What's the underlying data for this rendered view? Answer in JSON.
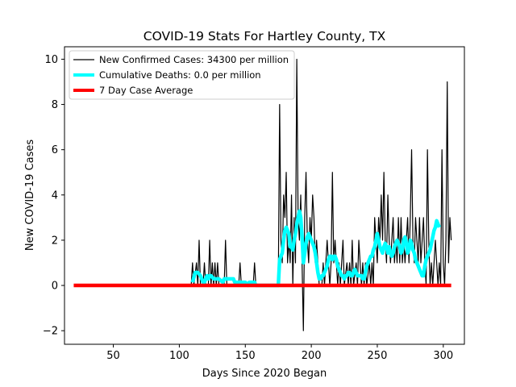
{
  "chart_data": {
    "type": "line",
    "title": "COVID-19 Stats For Hartley County, TX",
    "xlabel": "Days Since 2020 Began",
    "ylabel": "New COVID-19 Cases",
    "xlim": [
      13,
      316
    ],
    "ylim": [
      -2.6,
      10.55
    ],
    "xticks": [
      50,
      100,
      150,
      200,
      250,
      300
    ],
    "yticks": [
      -2,
      0,
      2,
      4,
      6,
      8,
      10
    ],
    "ytick_labels": [
      "−2",
      "0",
      "2",
      "4",
      "6",
      "8",
      "10"
    ],
    "grid": false,
    "legend_position": "upper-left",
    "series": [
      {
        "name": "New Confirmed Cases: 34300 per million",
        "color": "#000000",
        "points": [
          [
            20,
            0
          ],
          [
            109,
            0
          ],
          [
            110,
            1
          ],
          [
            111,
            0
          ],
          [
            113,
            1
          ],
          [
            114,
            0
          ],
          [
            115,
            2
          ],
          [
            116,
            0
          ],
          [
            118,
            0
          ],
          [
            119,
            1
          ],
          [
            120,
            0
          ],
          [
            122,
            0
          ],
          [
            123,
            2
          ],
          [
            124,
            0
          ],
          [
            125,
            1
          ],
          [
            126,
            0
          ],
          [
            127,
            1
          ],
          [
            128,
            0
          ],
          [
            129,
            1
          ],
          [
            130,
            0
          ],
          [
            134,
            0
          ],
          [
            135,
            2
          ],
          [
            136,
            0
          ],
          [
            145,
            0
          ],
          [
            146,
            1
          ],
          [
            147,
            0
          ],
          [
            156,
            0
          ],
          [
            157,
            1
          ],
          [
            158,
            0
          ],
          [
            175,
            0
          ],
          [
            176,
            8
          ],
          [
            177,
            2
          ],
          [
            178,
            1
          ],
          [
            179,
            4
          ],
          [
            180,
            3
          ],
          [
            181,
            5
          ],
          [
            182,
            1
          ],
          [
            183,
            2
          ],
          [
            184,
            1
          ],
          [
            185,
            4
          ],
          [
            186,
            0
          ],
          [
            187,
            3
          ],
          [
            188,
            1
          ],
          [
            189,
            10
          ],
          [
            190,
            3
          ],
          [
            191,
            2
          ],
          [
            192,
            4
          ],
          [
            193,
            1
          ],
          [
            194,
            -2
          ],
          [
            195,
            3
          ],
          [
            196,
            5
          ],
          [
            197,
            2
          ],
          [
            198,
            1
          ],
          [
            199,
            3
          ],
          [
            200,
            2
          ],
          [
            201,
            4
          ],
          [
            202,
            3
          ],
          [
            203,
            1
          ],
          [
            204,
            2
          ],
          [
            205,
            1
          ],
          [
            206,
            0
          ],
          [
            208,
            0
          ],
          [
            209,
            1
          ],
          [
            210,
            0
          ],
          [
            212,
            2
          ],
          [
            213,
            1
          ],
          [
            214,
            0
          ],
          [
            215,
            1
          ],
          [
            216,
            5
          ],
          [
            217,
            1
          ],
          [
            218,
            2
          ],
          [
            219,
            1
          ],
          [
            220,
            0
          ],
          [
            221,
            1
          ],
          [
            222,
            0
          ],
          [
            224,
            2
          ],
          [
            225,
            0
          ],
          [
            227,
            1
          ],
          [
            228,
            0
          ],
          [
            229,
            1
          ],
          [
            230,
            0
          ],
          [
            231,
            2
          ],
          [
            232,
            0
          ],
          [
            234,
            1
          ],
          [
            235,
            0
          ],
          [
            236,
            2
          ],
          [
            237,
            1
          ],
          [
            238,
            0
          ],
          [
            239,
            1
          ],
          [
            240,
            0
          ],
          [
            241,
            1
          ],
          [
            242,
            0
          ],
          [
            244,
            1
          ],
          [
            245,
            0
          ],
          [
            246,
            1
          ],
          [
            247,
            0
          ],
          [
            248,
            3
          ],
          [
            249,
            2
          ],
          [
            250,
            1
          ],
          [
            251,
            3
          ],
          [
            252,
            2
          ],
          [
            253,
            4
          ],
          [
            254,
            2
          ],
          [
            255,
            5
          ],
          [
            256,
            2
          ],
          [
            257,
            1
          ],
          [
            258,
            4
          ],
          [
            259,
            2
          ],
          [
            260,
            1
          ],
          [
            261,
            2
          ],
          [
            262,
            3
          ],
          [
            263,
            1
          ],
          [
            264,
            2
          ],
          [
            265,
            1
          ],
          [
            266,
            3
          ],
          [
            267,
            1
          ],
          [
            268,
            3
          ],
          [
            269,
            1
          ],
          [
            270,
            2
          ],
          [
            271,
            1
          ],
          [
            272,
            2
          ],
          [
            273,
            3
          ],
          [
            274,
            1
          ],
          [
            275,
            3
          ],
          [
            276,
            6
          ],
          [
            277,
            2
          ],
          [
            278,
            1
          ],
          [
            279,
            3
          ],
          [
            280,
            2
          ],
          [
            281,
            1
          ],
          [
            282,
            3
          ],
          [
            283,
            1
          ],
          [
            284,
            2
          ],
          [
            285,
            3
          ],
          [
            286,
            1
          ],
          [
            287,
            0
          ],
          [
            288,
            6
          ],
          [
            289,
            2
          ],
          [
            290,
            0
          ],
          [
            291,
            1
          ],
          [
            292,
            0
          ],
          [
            293,
            1
          ],
          [
            294,
            2
          ],
          [
            295,
            1
          ],
          [
            296,
            0
          ],
          [
            297,
            1
          ],
          [
            298,
            0
          ],
          [
            299,
            6
          ],
          [
            300,
            1
          ],
          [
            301,
            0
          ],
          [
            302,
            2
          ],
          [
            303,
            9
          ],
          [
            304,
            1
          ],
          [
            305,
            3
          ],
          [
            306,
            2
          ]
        ]
      },
      {
        "name": "Cumulative Deaths: 0.0 per million",
        "color": "#00ffff",
        "points": [
          [
            110,
            0.14
          ],
          [
            112,
            0.57
          ],
          [
            113,
            0.57
          ],
          [
            114,
            0.57
          ],
          [
            116,
            0.43
          ],
          [
            117,
            0.29
          ],
          [
            118,
            0.14
          ],
          [
            119,
            0.14
          ],
          [
            120,
            0.29
          ],
          [
            121,
            0.43
          ],
          [
            122,
            0.29
          ],
          [
            123,
            0.43
          ],
          [
            124,
            0.43
          ],
          [
            126,
            0.29
          ],
          [
            127,
            0.29
          ],
          [
            130,
            0.29
          ],
          [
            133,
            0.14
          ],
          [
            134,
            0.29
          ],
          [
            135,
            0.29
          ],
          [
            137,
            0.29
          ],
          [
            138,
            0.29
          ],
          [
            141,
            0.29
          ],
          [
            142,
            0.14
          ],
          [
            144,
            0.14
          ],
          [
            146,
            0.14
          ],
          [
            148,
            0.14
          ],
          [
            150,
            0.14
          ],
          [
            152,
            0.0
          ],
          [
            153,
            0.14
          ],
          [
            155,
            0.14
          ],
          [
            157,
            0.14
          ],
          [
            158,
            0.0
          ],
          [
            170,
            0.0
          ],
          [
            175,
            0.0
          ],
          [
            176,
            1.14
          ],
          [
            177,
            1.29
          ],
          [
            178,
            1.43
          ],
          [
            179,
            2.0
          ],
          [
            180,
            2.43
          ],
          [
            181,
            2.57
          ],
          [
            182,
            2.43
          ],
          [
            183,
            2.29
          ],
          [
            184,
            1.71
          ],
          [
            185,
            1.71
          ],
          [
            186,
            1.57
          ],
          [
            187,
            2.0
          ],
          [
            188,
            2.29
          ],
          [
            189,
            2.71
          ],
          [
            190,
            3.0
          ],
          [
            191,
            3.29
          ],
          [
            192,
            3.0
          ],
          [
            193,
            2.14
          ],
          [
            194,
            1.0
          ],
          [
            195,
            1.43
          ],
          [
            196,
            1.86
          ],
          [
            197,
            2.14
          ],
          [
            198,
            2.29
          ],
          [
            199,
            2.14
          ],
          [
            200,
            2.0
          ],
          [
            201,
            1.86
          ],
          [
            202,
            1.71
          ],
          [
            203,
            1.43
          ],
          [
            204,
            1.0
          ],
          [
            205,
            0.57
          ],
          [
            206,
            0.29
          ],
          [
            207,
            0.29
          ],
          [
            208,
            0.43
          ],
          [
            209,
            0.43
          ],
          [
            210,
            0.57
          ],
          [
            211,
            0.71
          ],
          [
            212,
            0.86
          ],
          [
            213,
            1.14
          ],
          [
            214,
            1.29
          ],
          [
            215,
            1.29
          ],
          [
            216,
            1.14
          ],
          [
            217,
            1.29
          ],
          [
            218,
            1.29
          ],
          [
            219,
            1.14
          ],
          [
            220,
            0.86
          ],
          [
            221,
            0.71
          ],
          [
            222,
            0.57
          ],
          [
            223,
            0.43
          ],
          [
            224,
            0.43
          ],
          [
            225,
            0.29
          ],
          [
            226,
            0.43
          ],
          [
            227,
            0.43
          ],
          [
            228,
            0.57
          ],
          [
            229,
            0.57
          ],
          [
            230,
            0.43
          ],
          [
            231,
            0.43
          ],
          [
            232,
            0.57
          ],
          [
            233,
            0.71
          ],
          [
            234,
            0.57
          ],
          [
            235,
            0.43
          ],
          [
            236,
            0.43
          ],
          [
            237,
            0.43
          ],
          [
            238,
            0.43
          ],
          [
            239,
            0.29
          ],
          [
            240,
            0.29
          ],
          [
            242,
            0.86
          ],
          [
            244,
            1.14
          ],
          [
            245,
            1.29
          ],
          [
            246,
            1.29
          ],
          [
            247,
            1.57
          ],
          [
            248,
            1.71
          ],
          [
            249,
            2.0
          ],
          [
            250,
            2.29
          ],
          [
            251,
            2.0
          ],
          [
            252,
            1.71
          ],
          [
            253,
            1.57
          ],
          [
            254,
            1.43
          ],
          [
            255,
            1.71
          ],
          [
            256,
            1.86
          ],
          [
            257,
            1.71
          ],
          [
            258,
            1.43
          ],
          [
            259,
            1.71
          ],
          [
            260,
            1.43
          ],
          [
            261,
            1.29
          ],
          [
            262,
            1.43
          ],
          [
            263,
            1.71
          ],
          [
            264,
            1.86
          ],
          [
            265,
            2.0
          ],
          [
            266,
            1.86
          ],
          [
            267,
            1.71
          ],
          [
            268,
            1.43
          ],
          [
            269,
            1.57
          ],
          [
            270,
            2.0
          ],
          [
            271,
            2.14
          ],
          [
            272,
            1.86
          ],
          [
            273,
            1.43
          ],
          [
            274,
            1.57
          ],
          [
            275,
            2.0
          ],
          [
            276,
            1.86
          ],
          [
            277,
            1.57
          ],
          [
            278,
            1.43
          ],
          [
            279,
            1.14
          ],
          [
            280,
            1.0
          ],
          [
            281,
            0.86
          ],
          [
            282,
            0.71
          ],
          [
            283,
            0.57
          ],
          [
            284,
            0.43
          ],
          [
            285,
            0.43
          ],
          [
            286,
            0.86
          ],
          [
            287,
            1.14
          ],
          [
            288,
            1.29
          ],
          [
            289,
            1.43
          ],
          [
            290,
            1.57
          ],
          [
            291,
            1.86
          ],
          [
            292,
            2.14
          ],
          [
            293,
            2.43
          ],
          [
            294,
            2.57
          ],
          [
            295,
            2.86
          ],
          [
            296,
            2.71
          ],
          [
            297,
            2.57
          ]
        ]
      },
      {
        "name": "7 Day Case Average",
        "color": "#ff0000",
        "points": [
          [
            20,
            0
          ],
          [
            306,
            0
          ]
        ]
      }
    ]
  }
}
